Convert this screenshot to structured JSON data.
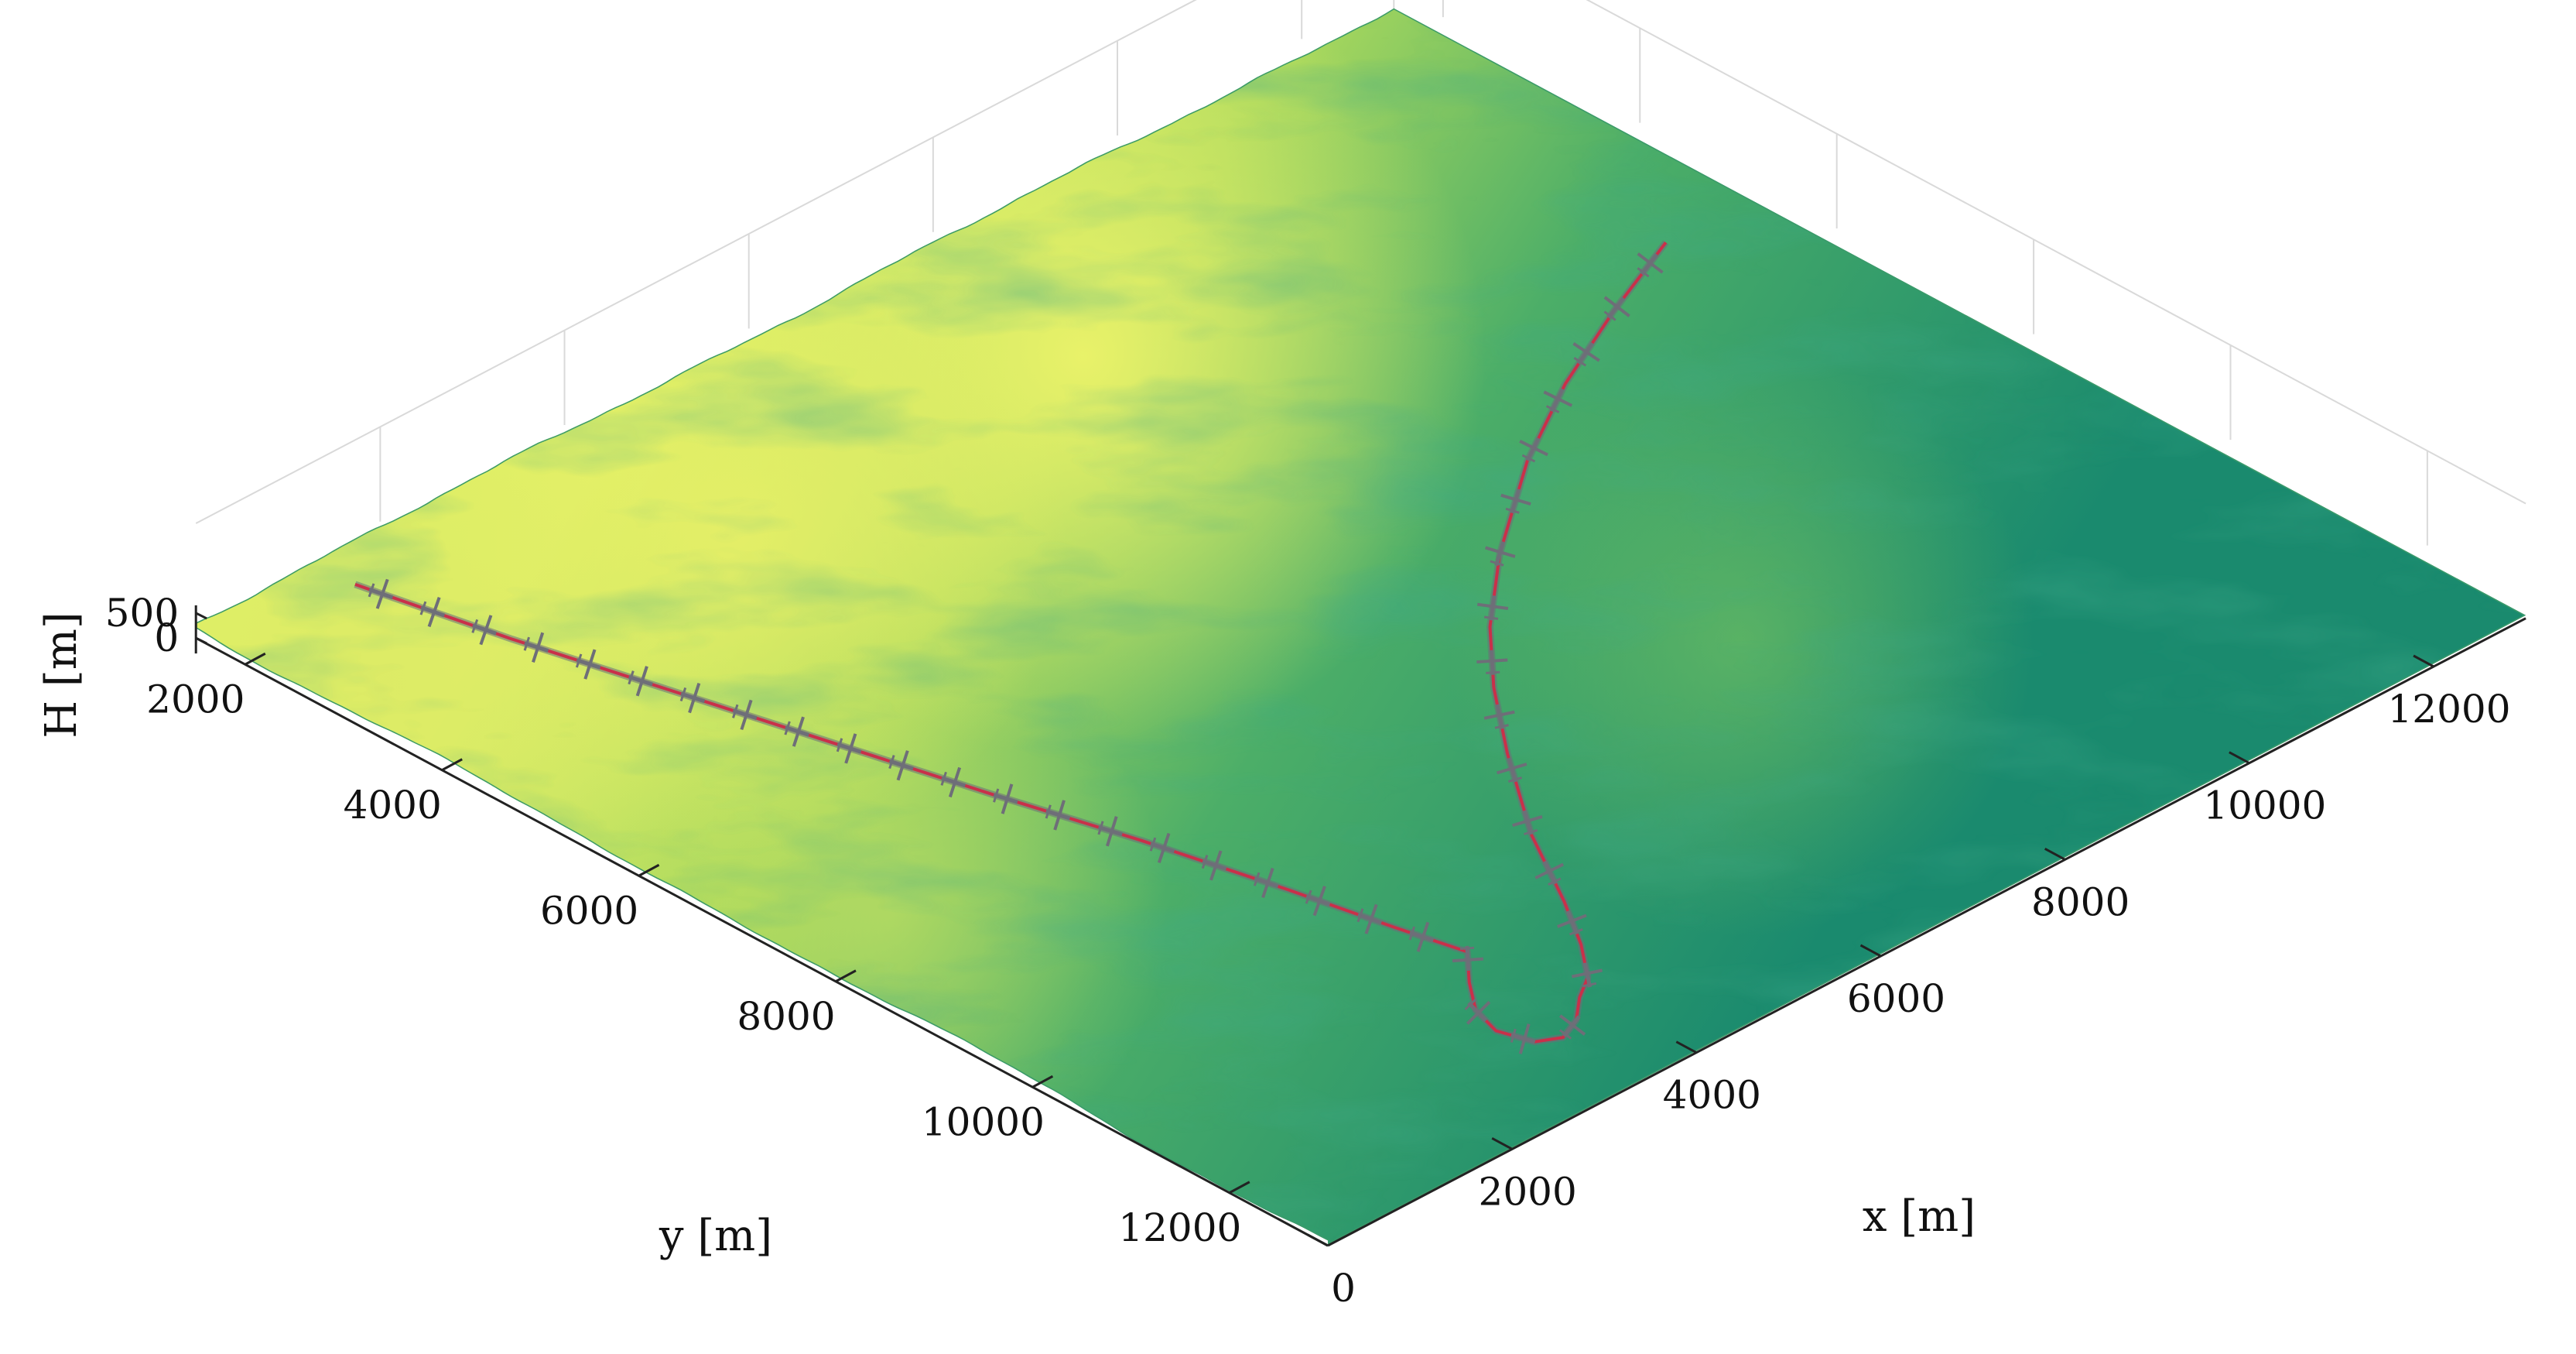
{
  "chart_data": {
    "type": "surface3d",
    "title": "",
    "xlabel": "x [m]",
    "ylabel": "y [m]",
    "zlabel": "H [m]",
    "xlim": [
      0,
      13000
    ],
    "ylim": [
      1500,
      13000
    ],
    "zlim": [
      0,
      500
    ],
    "x_ticks": [
      0,
      2000,
      4000,
      6000,
      8000,
      10000,
      12000
    ],
    "y_ticks": [
      2000,
      4000,
      6000,
      8000,
      10000,
      12000
    ],
    "z_ticks": [
      0,
      500
    ],
    "x_tick_labels": [
      "0",
      "2000",
      "4000",
      "6000",
      "8000",
      "10000",
      "12000"
    ],
    "y_tick_labels": [
      "2000",
      "4000",
      "6000",
      "8000",
      "10000",
      "12000"
    ],
    "z_tick_labels": [
      "0",
      "500"
    ],
    "grid": true,
    "colormap": {
      "low": "#1a8a6e",
      "mid": "#4caf63",
      "high": "#e6ef66"
    },
    "path_color": "#c9304a",
    "aircraft_marker_color": "#6e6e78",
    "path": {
      "xy": [
        [
          1300,
          1900
        ],
        [
          1600,
          3200
        ],
        [
          1950,
          4500
        ],
        [
          2300,
          5800
        ],
        [
          2650,
          7100
        ],
        [
          3000,
          8300
        ],
        [
          3300,
          9500
        ],
        [
          3500,
          10400
        ],
        [
          3650,
          11000
        ],
        [
          3350,
          11300
        ],
        [
          3100,
          11600
        ],
        [
          3000,
          11900
        ],
        [
          3100,
          12200
        ],
        [
          3300,
          12300
        ],
        [
          3550,
          12200
        ],
        [
          3800,
          12000
        ],
        [
          4050,
          11850
        ],
        [
          4350,
          11500
        ],
        [
          4700,
          11000
        ],
        [
          5200,
          10200
        ],
        [
          5900,
          9300
        ],
        [
          6500,
          8600
        ],
        [
          7100,
          8000
        ],
        [
          7900,
          7350
        ],
        [
          9000,
          6600
        ],
        [
          10000,
          6050
        ],
        [
          11000,
          5600
        ],
        [
          12000,
          5200
        ]
      ],
      "aircraft_markers": 40
    }
  }
}
